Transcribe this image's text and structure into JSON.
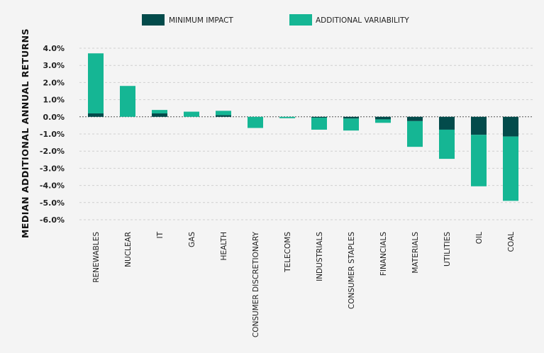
{
  "chart_data": {
    "type": "bar",
    "stacked": true,
    "title": "",
    "xlabel": "",
    "ylabel": "MEDIAN ADDITIONAL ANNUAL RETURNS",
    "ylim": [
      -6.0,
      4.0
    ],
    "y_ticks": [
      "4.0%",
      "3.0%",
      "2.0%",
      "1.0%",
      "0.0%",
      "-1.0%",
      "-2.0%",
      "-3.0%",
      "-4.0%",
      "-5.0%",
      "-6.0%"
    ],
    "grid": true,
    "legend_position": "top-center",
    "categories": [
      "RENEWABLES",
      "NUCLEAR",
      "IT",
      "GAS",
      "HEALTH",
      "CONSUMER DISCRETIONARY",
      "TELECOMS",
      "INDUSTRIALS",
      "CONSUMER STAPLES",
      "FINANCIALS",
      "MATERIALS",
      "UTILITIES",
      "OIL",
      "COAL"
    ],
    "series": [
      {
        "name": "MINIMUM IMPACT",
        "color": "#034b4b",
        "values": [
          0.2,
          0.0,
          0.2,
          0.0,
          0.1,
          0.0,
          0.0,
          -0.05,
          -0.1,
          -0.15,
          -0.25,
          -0.75,
          -1.05,
          -1.15
        ]
      },
      {
        "name": "ADDITIONAL VARIABILITY",
        "color": "#15b694",
        "values": [
          3.5,
          1.8,
          0.2,
          0.3,
          0.25,
          -0.65,
          -0.08,
          -0.7,
          -0.7,
          -0.2,
          -1.5,
          -1.7,
          -3.0,
          -3.75
        ]
      }
    ]
  }
}
